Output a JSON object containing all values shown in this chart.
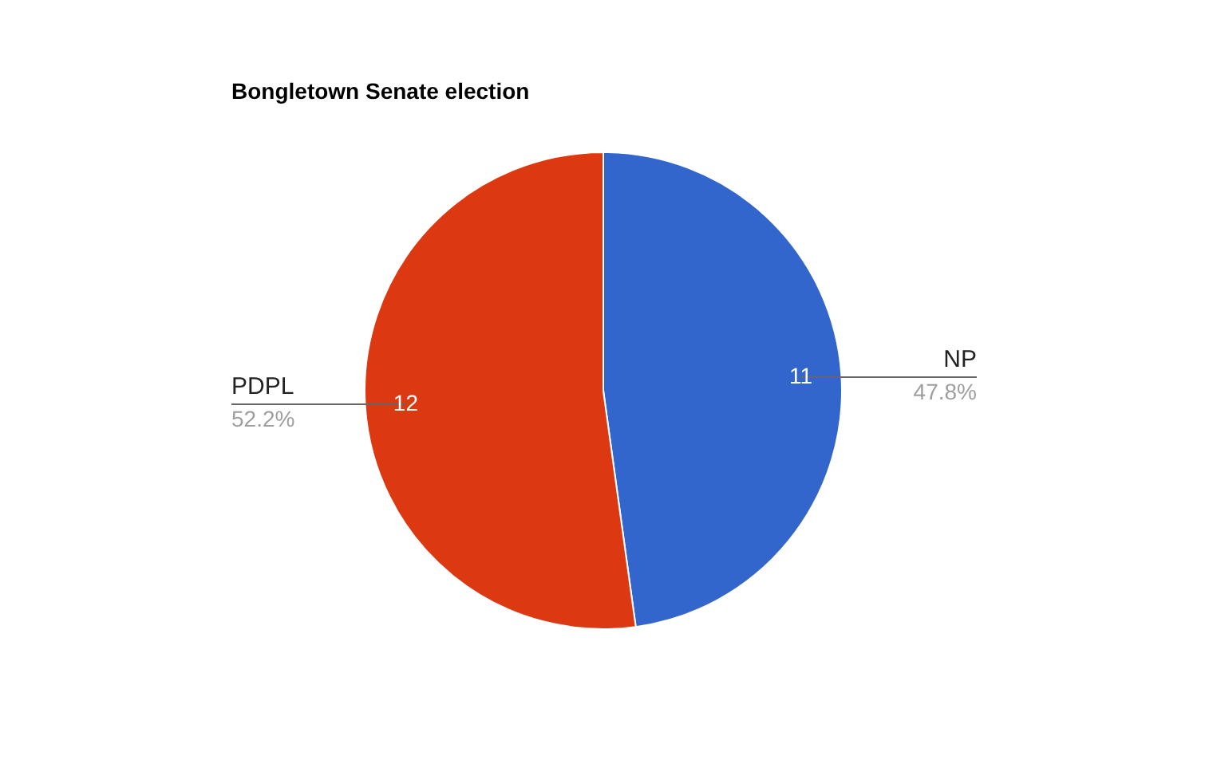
{
  "chart_data": {
    "type": "pie",
    "title": "Bongletown Senate election",
    "categories": [
      "NP",
      "PDPL"
    ],
    "values": [
      11,
      12
    ],
    "colors": [
      "#3366cc",
      "#dc3912"
    ],
    "data_labels": true,
    "annotations": [
      "47.8%",
      "52.2%"
    ],
    "legend": false
  }
}
